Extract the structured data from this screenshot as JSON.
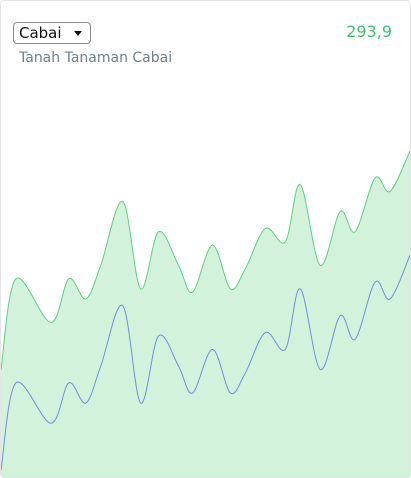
{
  "header": {
    "selector": "Cabai",
    "value": "293,9",
    "subtitle": "Tanah Tanaman Cabai"
  },
  "chart_data": {
    "type": "area",
    "x": [
      0,
      15,
      50,
      68,
      85,
      100,
      122,
      140,
      158,
      178,
      192,
      212,
      230,
      245,
      265,
      285,
      300,
      320,
      340,
      355,
      375,
      390,
      410
    ],
    "xlim": [
      0,
      410
    ],
    "ylim": [
      0,
      100
    ],
    "series": [
      {
        "color": "#5fcf7f",
        "values": [
          32,
          59,
          46,
          59,
          53,
          63,
          82,
          56,
          73,
          63,
          55,
          69,
          56,
          62,
          74,
          70,
          87,
          63,
          79,
          73,
          89,
          85,
          97
        ]
      },
      {
        "color": "#6f8fd8",
        "values": [
          2,
          28,
          16,
          28,
          22,
          33,
          51,
          22,
          42,
          33,
          25,
          38,
          25,
          31,
          43,
          38,
          56,
          32,
          48,
          41,
          58,
          53,
          66
        ]
      }
    ]
  }
}
